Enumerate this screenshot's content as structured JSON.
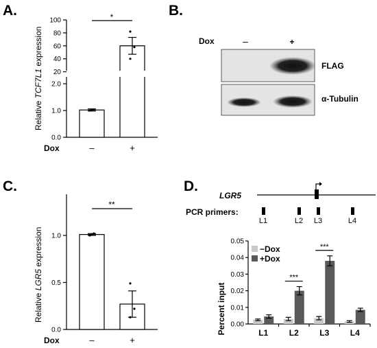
{
  "panels": {
    "A": {
      "label": "A."
    },
    "B": {
      "label": "B.",
      "dox_label": "Dox",
      "lane_labels": [
        "–",
        "+"
      ],
      "bands": [
        "FLAG",
        "α-Tubulin"
      ]
    },
    "C": {
      "label": "C."
    },
    "D": {
      "label": "D.",
      "gene": "LGR5",
      "primers_label": "PCR primers:",
      "primers": [
        "L1",
        "L2",
        "L3",
        "L4"
      ]
    }
  },
  "chart_data": [
    {
      "id": "A",
      "type": "bar",
      "ylabel_prefix": "Relative ",
      "ylabel_gene": "TCF7L1",
      "ylabel_suffix": " expression",
      "xlabel": "Dox",
      "categories": [
        "–",
        "+"
      ],
      "values": [
        1.02,
        60
      ],
      "errors": [
        0.04,
        13
      ],
      "points": [
        [
          1.0,
          1.03,
          1.04
        ],
        [
          40,
          58,
          82
        ]
      ],
      "axis_breaks": true,
      "yticks_lower": [
        "0.0",
        "1.0",
        "2.0"
      ],
      "yticks_upper": [
        "20",
        "40",
        "60",
        "80",
        "100"
      ],
      "significance": "*"
    },
    {
      "id": "C",
      "type": "bar",
      "ylabel_prefix": "Relative ",
      "ylabel_gene": "LGR5",
      "ylabel_suffix": " expression",
      "xlabel": "Dox",
      "categories": [
        "–",
        "+"
      ],
      "values": [
        1.01,
        0.27
      ],
      "errors": [
        0.01,
        0.14
      ],
      "points": [
        [
          1.0,
          1.01,
          1.02
        ],
        [
          0.13,
          0.22,
          0.49
        ]
      ],
      "ylim": [
        0,
        1.0
      ],
      "yticks": [
        "0.0",
        "0.5",
        "1.0"
      ],
      "significance": "**"
    },
    {
      "id": "D",
      "type": "bar",
      "ylabel": "Percent input",
      "categories": [
        "L1",
        "L2",
        "L3",
        "L4"
      ],
      "series": [
        {
          "name": "−Dox",
          "values": [
            0.0025,
            0.003,
            0.0035,
            0.0015
          ],
          "errors": [
            0.0005,
            0.001,
            0.001,
            0.0005
          ],
          "color": "#c9c9c9"
        },
        {
          "name": "+Dox",
          "values": [
            0.0045,
            0.02,
            0.038,
            0.0085
          ],
          "errors": [
            0.001,
            0.0025,
            0.003,
            0.001
          ],
          "color": "#595959"
        }
      ],
      "ylim": [
        0,
        0.05
      ],
      "yticks": [
        "0.00",
        "0.01",
        "0.02",
        "0.03",
        "0.04",
        "0.05"
      ],
      "significance": {
        "L2": "***",
        "L3": "***"
      },
      "legend": "top-left"
    }
  ]
}
